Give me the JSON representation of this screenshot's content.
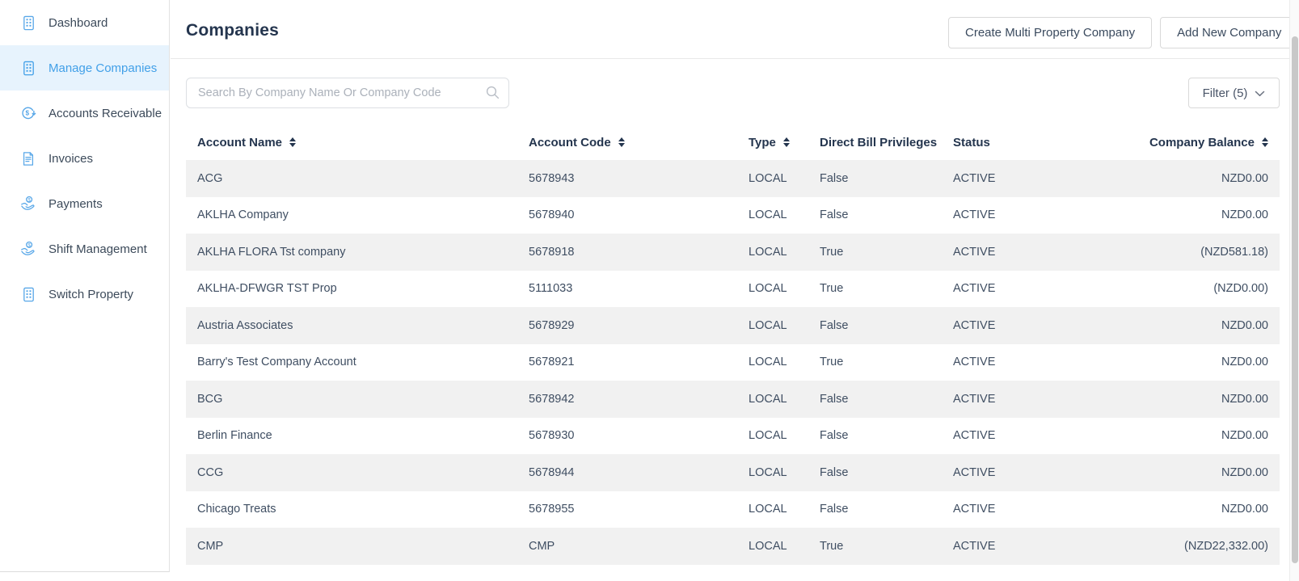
{
  "sidebar": {
    "items": [
      {
        "label": "Dashboard",
        "icon": "building-icon",
        "active": false
      },
      {
        "label": "Manage Companies",
        "icon": "building-icon",
        "active": true
      },
      {
        "label": "Accounts Receivable",
        "icon": "dollar-cycle-icon",
        "active": false
      },
      {
        "label": "Invoices",
        "icon": "invoice-icon",
        "active": false
      },
      {
        "label": "Payments",
        "icon": "hand-coin-icon",
        "active": false
      },
      {
        "label": "Shift Management",
        "icon": "hand-coin-icon",
        "active": false
      },
      {
        "label": "Switch Property",
        "icon": "building-icon",
        "active": false
      }
    ]
  },
  "header": {
    "title": "Companies",
    "buttons": [
      {
        "label": "Create Multi Property Company"
      },
      {
        "label": "Add New Company"
      }
    ]
  },
  "toolbar": {
    "search": {
      "placeholder": "Search By Company Name Or Company Code",
      "value": "",
      "icon": "search-icon"
    },
    "filter": {
      "label": "Filter (5)",
      "icon": "chevron-down-icon"
    }
  },
  "table": {
    "columns": [
      {
        "key": "account_name",
        "label": "Account Name",
        "sortable": true
      },
      {
        "key": "account_code",
        "label": "Account Code",
        "sortable": true
      },
      {
        "key": "type",
        "label": "Type",
        "sortable": true
      },
      {
        "key": "direct_bill_privileges",
        "label": "Direct Bill Privileges",
        "sortable": false
      },
      {
        "key": "status",
        "label": "Status",
        "sortable": false
      },
      {
        "key": "company_balance",
        "label": "Company Balance",
        "sortable": true,
        "align": "right"
      }
    ],
    "rows": [
      {
        "account_name": "ACG",
        "account_code": "5678943",
        "type": "LOCAL",
        "direct_bill_privileges": "False",
        "status": "ACTIVE",
        "company_balance": "NZD0.00"
      },
      {
        "account_name": "AKLHA Company",
        "account_code": "5678940",
        "type": "LOCAL",
        "direct_bill_privileges": "False",
        "status": "ACTIVE",
        "company_balance": "NZD0.00"
      },
      {
        "account_name": "AKLHA FLORA Tst company",
        "account_code": "5678918",
        "type": "LOCAL",
        "direct_bill_privileges": "True",
        "status": "ACTIVE",
        "company_balance": "(NZD581.18)"
      },
      {
        "account_name": "AKLHA-DFWGR TST Prop",
        "account_code": "5111033",
        "type": "LOCAL",
        "direct_bill_privileges": "True",
        "status": "ACTIVE",
        "company_balance": "(NZD0.00)"
      },
      {
        "account_name": "Austria Associates",
        "account_code": "5678929",
        "type": "LOCAL",
        "direct_bill_privileges": "False",
        "status": "ACTIVE",
        "company_balance": "NZD0.00"
      },
      {
        "account_name": "Barry's Test Company Account",
        "account_code": "5678921",
        "type": "LOCAL",
        "direct_bill_privileges": "True",
        "status": "ACTIVE",
        "company_balance": "NZD0.00"
      },
      {
        "account_name": "BCG",
        "account_code": "5678942",
        "type": "LOCAL",
        "direct_bill_privileges": "False",
        "status": "ACTIVE",
        "company_balance": "NZD0.00"
      },
      {
        "account_name": "Berlin Finance",
        "account_code": "5678930",
        "type": "LOCAL",
        "direct_bill_privileges": "False",
        "status": "ACTIVE",
        "company_balance": "NZD0.00"
      },
      {
        "account_name": "CCG",
        "account_code": "5678944",
        "type": "LOCAL",
        "direct_bill_privileges": "False",
        "status": "ACTIVE",
        "company_balance": "NZD0.00"
      },
      {
        "account_name": "Chicago Treats",
        "account_code": "5678955",
        "type": "LOCAL",
        "direct_bill_privileges": "False",
        "status": "ACTIVE",
        "company_balance": "NZD0.00"
      },
      {
        "account_name": "CMP",
        "account_code": "CMP",
        "type": "LOCAL",
        "direct_bill_privileges": "True",
        "status": "ACTIVE",
        "company_balance": "(NZD22,332.00)"
      }
    ]
  },
  "colors": {
    "accent_blue": "#42A0E8",
    "icon_blue": "#58A7E8",
    "selected_item_bg": "#E7F3FD",
    "row_stripe": "#F1F1F1",
    "heading_text": "#24354E",
    "body_text": "#3F4E62"
  }
}
